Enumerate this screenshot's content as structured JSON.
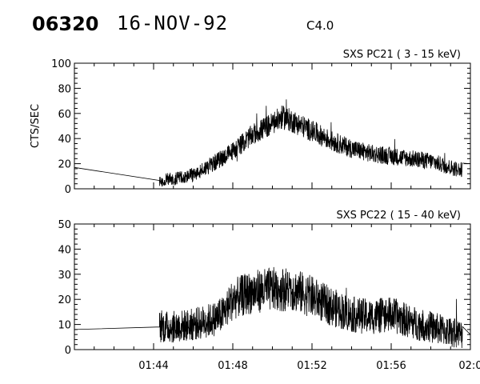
{
  "header": {
    "event_id": "06320",
    "date": "16-NOV-92",
    "flare_class": "C4.0"
  },
  "chart_data": [
    {
      "type": "line",
      "title": "SXS PC21  (  3 - 15 keV)",
      "ylabel": "CTS/SEC",
      "xlabel": "",
      "xlim": [
        "01:40",
        "02:00"
      ],
      "ylim": [
        0,
        100
      ],
      "yticks": [
        0,
        20,
        40,
        60,
        80,
        100
      ],
      "grid": false,
      "series": [
        {
          "x": [
            "01:40",
            "01:42",
            "01:44",
            "01:44.5",
            "01:45",
            "01:46",
            "01:47",
            "01:48",
            "01:49",
            "01:50",
            "01:50.5",
            "01:51",
            "01:52",
            "01:53",
            "01:54",
            "01:55",
            "01:56",
            "01:57",
            "01:58",
            "01:59",
            "01:59.5",
            "02:00"
          ],
          "values": [
            17,
            12,
            6,
            7,
            8,
            11,
            20,
            30,
            43,
            52,
            57,
            54,
            46,
            38,
            32,
            28,
            26,
            24,
            22,
            17,
            15,
            20
          ]
        }
      ]
    },
    {
      "type": "line",
      "title": "SXS PC22  ( 15 - 40 keV)",
      "ylabel": "",
      "xlabel": "",
      "xlim": [
        "01:40",
        "02:00"
      ],
      "ylim": [
        0,
        50
      ],
      "yticks": [
        0,
        10,
        20,
        30,
        40,
        50
      ],
      "xticks": [
        "01:44",
        "01:48",
        "01:52",
        "01:56",
        "02:0"
      ],
      "grid": false,
      "series": [
        {
          "x": [
            "01:40",
            "01:42",
            "01:44",
            "01:44.5",
            "01:45",
            "01:46",
            "01:47",
            "01:47.5",
            "01:48",
            "01:49",
            "01:50",
            "01:51",
            "01:52",
            "01:53",
            "01:54",
            "01:55",
            "01:56",
            "01:57",
            "01:58",
            "01:59",
            "01:59.5",
            "02:00"
          ],
          "values": [
            8,
            8.5,
            9,
            9,
            9,
            10,
            12,
            14,
            20,
            23,
            24,
            24,
            21,
            17,
            14,
            13,
            14,
            11,
            9,
            7,
            6,
            6
          ]
        }
      ]
    }
  ]
}
